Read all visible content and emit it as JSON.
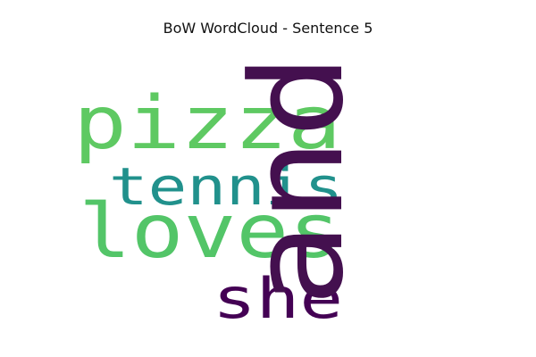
{
  "title": "BoW WordCloud - Sentence 5",
  "chart_data": {
    "type": "wordcloud",
    "title": "BoW WordCloud - Sentence 5",
    "words": [
      {
        "text": "and",
        "weight": 1.0,
        "color": "#44104f",
        "orientation": "vertical"
      },
      {
        "text": "pizza",
        "weight": 0.85,
        "color": "#5ec962",
        "orientation": "horizontal"
      },
      {
        "text": "loves",
        "weight": 0.85,
        "color": "#53c568",
        "orientation": "horizontal"
      },
      {
        "text": "tennis",
        "weight": 0.6,
        "color": "#21918c",
        "orientation": "horizontal"
      },
      {
        "text": "she",
        "weight": 0.6,
        "color": "#440154",
        "orientation": "horizontal"
      }
    ]
  }
}
